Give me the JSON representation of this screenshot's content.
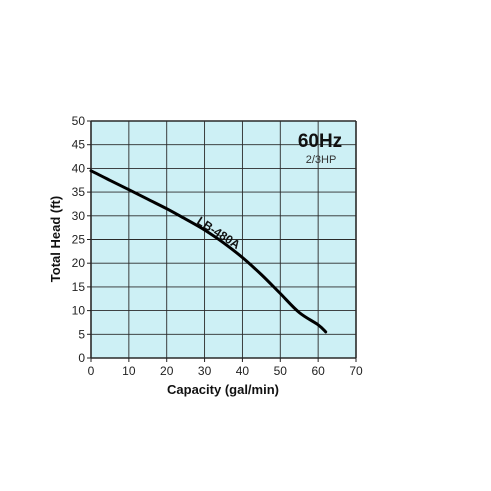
{
  "chart_data": {
    "type": "line",
    "xlabel": "Capacity (gal/min)",
    "ylabel": "Total Head (ft)",
    "xlim": [
      0,
      70
    ],
    "ylim": [
      0,
      50
    ],
    "x_ticks": [
      "0",
      "10",
      "20",
      "30",
      "40",
      "50",
      "60",
      "70"
    ],
    "y_ticks": [
      "0",
      "5",
      "10",
      "15",
      "20",
      "25",
      "30",
      "35",
      "40",
      "45",
      "50"
    ],
    "grid": true,
    "annotations": {
      "frequency": "60Hz",
      "power": "2/3HP"
    },
    "series": [
      {
        "name": "LB-480A",
        "x": [
          0,
          5,
          10,
          15,
          20,
          25,
          30,
          35,
          40,
          45,
          50,
          55,
          60,
          62
        ],
        "y": [
          39.5,
          37.5,
          35.5,
          33.5,
          31.5,
          29.3,
          27,
          24.3,
          21.2,
          17.6,
          13.6,
          9.6,
          7,
          5.5
        ]
      }
    ],
    "colors": {
      "plot_background": "#cdf0f5",
      "grid": "#2a2a2a",
      "curve": "#000000",
      "axis": "#222222"
    }
  }
}
